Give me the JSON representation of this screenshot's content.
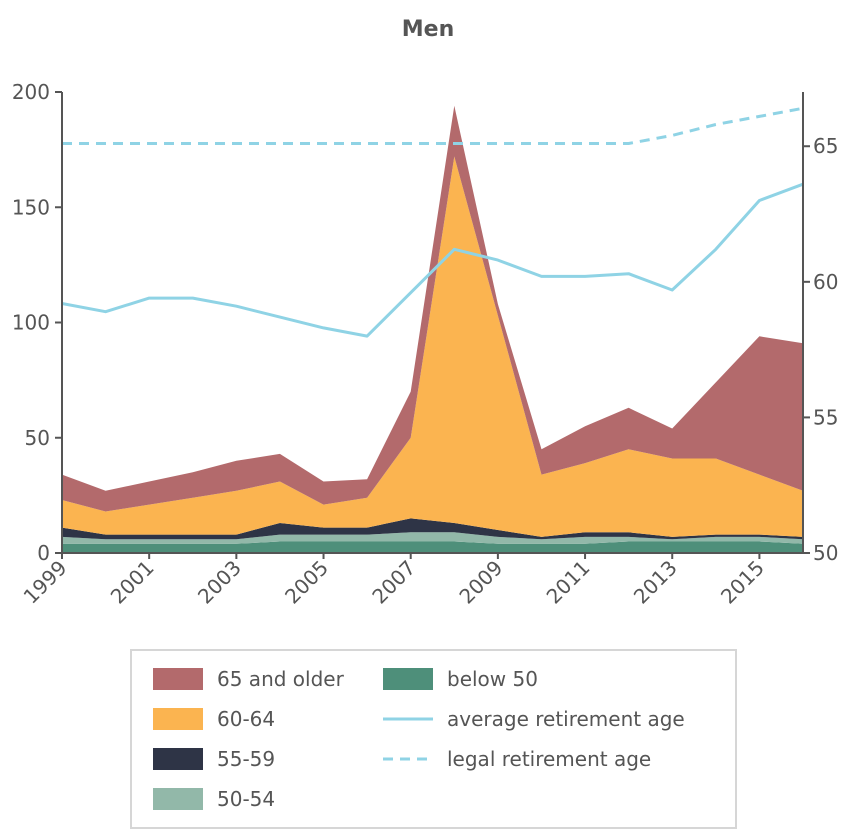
{
  "chart_data": {
    "type": "area",
    "title": "Men",
    "x": [
      1999,
      2000,
      2001,
      2002,
      2003,
      2004,
      2005,
      2006,
      2007,
      2008,
      2009,
      2010,
      2011,
      2012,
      2013,
      2014,
      2015,
      2016
    ],
    "x_ticks": [
      "1999",
      "2001",
      "2003",
      "2005",
      "2007",
      "2009",
      "2011",
      "2013",
      "2015"
    ],
    "xlim": [
      1999,
      2016
    ],
    "ylim_left": [
      0,
      200
    ],
    "y_ticks_left": [
      "0",
      "50",
      "100",
      "150",
      "200"
    ],
    "ylim_right": [
      50,
      67
    ],
    "y_ticks_right": [
      "50",
      "55",
      "60",
      "65"
    ],
    "stacked_series": [
      {
        "name": "below 50",
        "color": "#4e8f7a",
        "values": [
          4,
          4,
          4,
          4,
          4,
          5,
          5,
          5,
          5,
          5,
          4,
          4,
          4,
          5,
          5,
          5,
          5,
          4
        ]
      },
      {
        "name": "50-54",
        "color": "#92b8a9",
        "values": [
          3,
          2,
          2,
          2,
          2,
          3,
          3,
          3,
          4,
          4,
          3,
          2,
          3,
          2,
          1,
          2,
          2,
          2
        ]
      },
      {
        "name": "55-59",
        "color": "#2e3446",
        "values": [
          4,
          2,
          2,
          2,
          2,
          5,
          3,
          3,
          6,
          4,
          3,
          1,
          2,
          2,
          1,
          1,
          1,
          1
        ]
      },
      {
        "name": "60-64",
        "color": "#fbb450",
        "values": [
          12,
          10,
          13,
          16,
          19,
          18,
          10,
          13,
          35,
          159,
          93,
          27,
          30,
          36,
          34,
          33,
          26,
          20
        ]
      },
      {
        "name": "65 and older",
        "color": "#b36a6c",
        "values": [
          11,
          9,
          10,
          11,
          13,
          12,
          10,
          8,
          20,
          22,
          5,
          11,
          16,
          18,
          13,
          33,
          60,
          64
        ]
      }
    ],
    "line_series": [
      {
        "name": "average retirement age",
        "color": "#8fd3e5",
        "style": "solid",
        "axis": "right",
        "values": [
          59.2,
          58.9,
          59.4,
          59.4,
          59.1,
          58.7,
          58.3,
          58.0,
          59.6,
          61.2,
          60.8,
          60.2,
          60.2,
          60.3,
          59.7,
          61.2,
          63.0,
          63.6
        ]
      },
      {
        "name": "legal retirement age",
        "color": "#8fd3e5",
        "style": "dashed",
        "axis": "right",
        "values": [
          65.1,
          65.1,
          65.1,
          65.1,
          65.1,
          65.1,
          65.1,
          65.1,
          65.1,
          65.1,
          65.1,
          65.1,
          65.1,
          65.1,
          65.4,
          65.8,
          66.1,
          66.4
        ]
      }
    ],
    "legend": {
      "placement": "bottom",
      "entries": [
        {
          "label": "65 and older",
          "symbol": "box",
          "color": "#b36a6c"
        },
        {
          "label": "60-64",
          "symbol": "box",
          "color": "#fbb450"
        },
        {
          "label": "55-59",
          "symbol": "box",
          "color": "#2e3446"
        },
        {
          "label": "50-54",
          "symbol": "box",
          "color": "#92b8a9"
        },
        {
          "label": "below 50",
          "symbol": "box",
          "color": "#4e8f7a"
        },
        {
          "label": "average retirement age",
          "symbol": "solid",
          "color": "#8fd3e5"
        },
        {
          "label": "legal retirement age",
          "symbol": "dashed",
          "color": "#8fd3e5"
        }
      ]
    },
    "grid": false
  }
}
